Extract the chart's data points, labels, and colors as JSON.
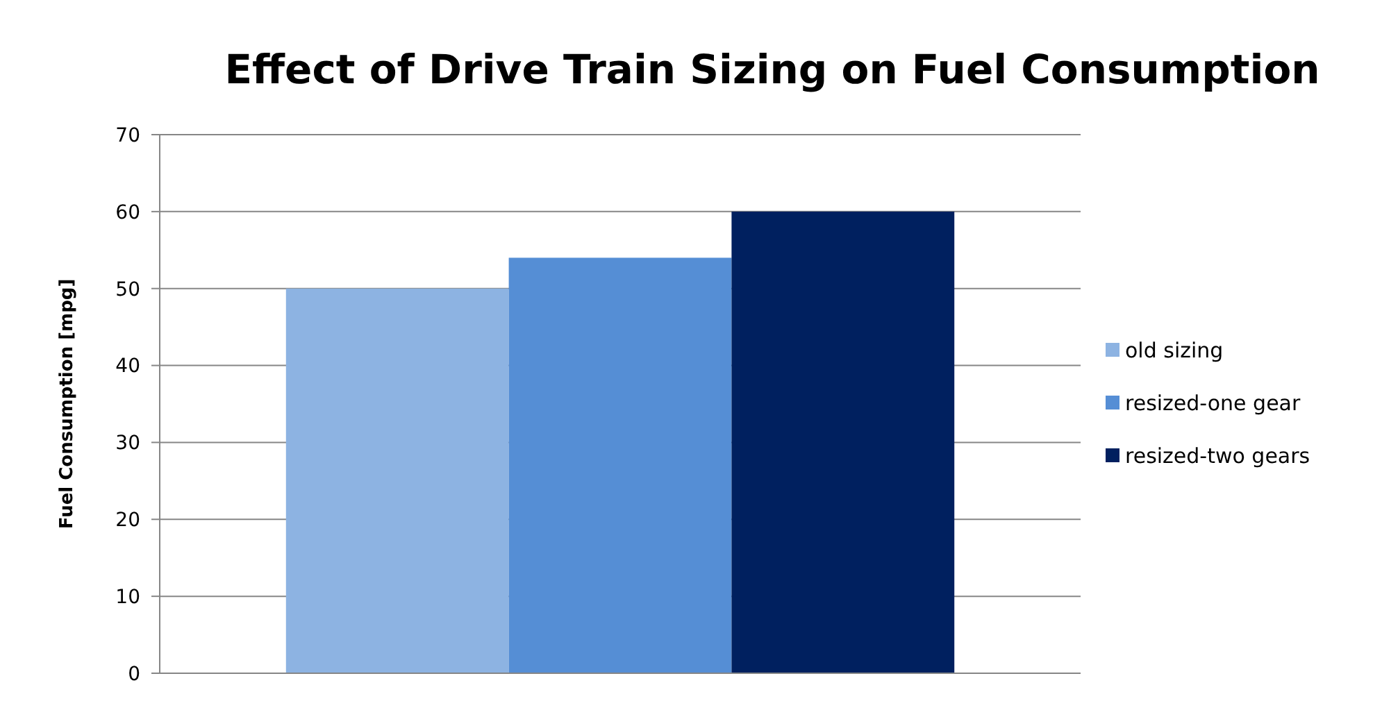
{
  "chart_data": {
    "type": "bar",
    "title": "Effect of Drive Train Sizing on Fuel Consumption",
    "ylabel": "Fuel Consumption  [mpg]",
    "categories": [
      null
    ],
    "series": [
      {
        "name": "old sizing",
        "color": "#8db3e2",
        "values": [
          50
        ]
      },
      {
        "name": "resized-one gear",
        "color": "#558ed5",
        "values": [
          54
        ]
      },
      {
        "name": "resized-two gears",
        "color": "#00205f",
        "values": [
          60
        ]
      }
    ],
    "ylim": [
      0,
      70
    ],
    "yticks": [
      0,
      10,
      20,
      30,
      40,
      50,
      60,
      70
    ],
    "grid": "y",
    "legend": "right"
  }
}
